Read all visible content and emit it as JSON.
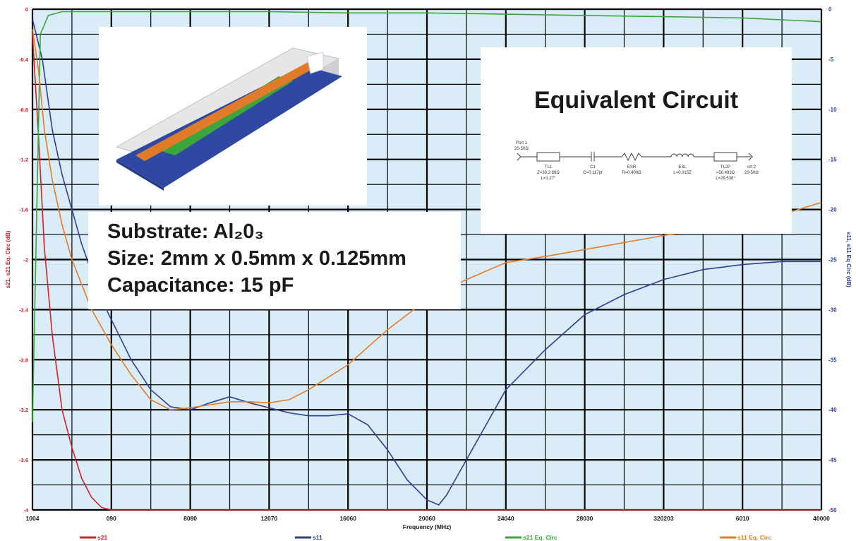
{
  "chart_data": {
    "type": "line",
    "xlabel": "Frequency (MHz)",
    "ylabel_left": "s21, s21 Eq. Circ (dB)",
    "ylabel_right": "s11, s11 Eq Circ (dB)",
    "x_tick_labels": [
      "1004",
      "090",
      "8080",
      "12070",
      "16060",
      "20060",
      "24040",
      "28030",
      "320203",
      "6010",
      "40000"
    ],
    "x_range": [
      0,
      40000
    ],
    "y_left_ticks": [
      "0",
      "-0.4",
      "-0.8",
      "-1.2",
      "-1.6",
      "-2",
      "-2.4",
      "-2.8",
      "-3.2",
      "-3.6",
      "-4"
    ],
    "y_left_range": [
      -4,
      0
    ],
    "y_right_ticks": [
      "0",
      "-5",
      "-10",
      "-15",
      "-20",
      "-25",
      "-30",
      "-35",
      "-40",
      "-45",
      "-50"
    ],
    "y_right_range": [
      -50,
      0
    ],
    "grid": true,
    "legend_position": "bottom",
    "series": [
      {
        "name": "s21",
        "axis": "left",
        "color": "#d42027",
        "points": [
          [
            0,
            -0.2
          ],
          [
            300,
            -1.0
          ],
          [
            600,
            -1.9
          ],
          [
            1000,
            -2.6
          ],
          [
            1500,
            -3.2
          ],
          [
            2000,
            -3.5
          ],
          [
            2500,
            -3.75
          ],
          [
            3000,
            -3.9
          ],
          [
            3500,
            -3.98
          ],
          [
            4000,
            -4.0
          ],
          [
            8000,
            -4.0
          ],
          [
            12000,
            -4.0
          ],
          [
            16000,
            -4.0
          ],
          [
            20000,
            -4.0
          ],
          [
            24000,
            -4.0
          ],
          [
            28000,
            -4.0
          ],
          [
            32000,
            -4.0
          ],
          [
            36000,
            -4.0
          ],
          [
            40000,
            -4.0
          ]
        ]
      },
      {
        "name": "s11",
        "axis": "right",
        "color": "#2e3f96",
        "points": [
          [
            0,
            -1.0
          ],
          [
            500,
            -5.0
          ],
          [
            1000,
            -12.0
          ],
          [
            1500,
            -16.5
          ],
          [
            2500,
            -23.5
          ],
          [
            3500,
            -29.0
          ],
          [
            5000,
            -35.0
          ],
          [
            6000,
            -38.0
          ],
          [
            7000,
            -39.7
          ],
          [
            8000,
            -40.0
          ],
          [
            9000,
            -39.3
          ],
          [
            10000,
            -38.7
          ],
          [
            11000,
            -39.3
          ],
          [
            12000,
            -39.8
          ],
          [
            13000,
            -40.3
          ],
          [
            14000,
            -40.6
          ],
          [
            15000,
            -40.6
          ],
          [
            16000,
            -40.4
          ],
          [
            17000,
            -41.5
          ],
          [
            18000,
            -44.0
          ],
          [
            19000,
            -47.0
          ],
          [
            20000,
            -49.0
          ],
          [
            20600,
            -49.5
          ],
          [
            21000,
            -48.5
          ],
          [
            22000,
            -45.0
          ],
          [
            23000,
            -41.5
          ],
          [
            24000,
            -38.0
          ],
          [
            26000,
            -34.0
          ],
          [
            28000,
            -30.5
          ],
          [
            30000,
            -28.5
          ],
          [
            32000,
            -27.0
          ],
          [
            34000,
            -26.0
          ],
          [
            36000,
            -25.5
          ],
          [
            38000,
            -25.2
          ],
          [
            40000,
            -25.2
          ]
        ]
      },
      {
        "name": "s21 Eq. Circ",
        "axis": "left",
        "color": "#3aa63b",
        "points": [
          [
            0,
            -3.3
          ],
          [
            400,
            -0.2
          ],
          [
            800,
            -0.05
          ],
          [
            1500,
            -0.02
          ],
          [
            8000,
            -0.02
          ],
          [
            12000,
            -0.02
          ],
          [
            16000,
            -0.03
          ],
          [
            20000,
            -0.03
          ],
          [
            24000,
            -0.04
          ],
          [
            28000,
            -0.05
          ],
          [
            32000,
            -0.06
          ],
          [
            36000,
            -0.07
          ],
          [
            40000,
            -0.1
          ]
        ]
      },
      {
        "name": "s11 Eq. Circ",
        "axis": "right",
        "color": "#e67c26",
        "points": [
          [
            0,
            -2.0
          ],
          [
            300,
            -6.0
          ],
          [
            600,
            -12.0
          ],
          [
            1000,
            -17.0
          ],
          [
            1500,
            -21.5
          ],
          [
            2000,
            -25.0
          ],
          [
            3000,
            -30.0
          ],
          [
            4000,
            -33.5
          ],
          [
            5000,
            -36.5
          ],
          [
            6000,
            -39.0
          ],
          [
            7000,
            -40.0
          ],
          [
            8000,
            -39.8
          ],
          [
            9000,
            -39.5
          ],
          [
            10000,
            -39.2
          ],
          [
            11000,
            -39.2
          ],
          [
            12000,
            -39.3
          ],
          [
            13000,
            -39.0
          ],
          [
            14000,
            -38.0
          ],
          [
            16000,
            -35.5
          ],
          [
            18000,
            -32.0
          ],
          [
            20000,
            -29.0
          ],
          [
            22000,
            -27.0
          ],
          [
            24000,
            -25.3
          ],
          [
            26000,
            -24.7
          ],
          [
            28000,
            -24.0
          ],
          [
            30000,
            -23.3
          ],
          [
            32000,
            -22.6
          ],
          [
            34000,
            -22.0
          ],
          [
            36000,
            -21.2
          ],
          [
            38000,
            -20.5
          ],
          [
            40000,
            -19.3
          ]
        ]
      }
    ]
  },
  "info": {
    "substrate_label": "Substrate: Al₂0₃",
    "size_label": "Size: 2mm x 0.5mm x 0.125mm",
    "cap_label": "Capacitance: 15 pF"
  },
  "circuit": {
    "title": "Equivalent Circuit",
    "port1": [
      "Port 1",
      "20-50Ω"
    ],
    "port2": [
      "ort 2",
      "20-50Ω"
    ],
    "components": [
      {
        "name": "TL1",
        "lines": [
          "TL1",
          "Z=39.3 89Ω",
          "L=1.27°"
        ]
      },
      {
        "name": "C1",
        "lines": [
          "C1",
          "C=0.117pf"
        ]
      },
      {
        "name": "ESR",
        "lines": [
          "ESR",
          "R=0.400Ω"
        ]
      },
      {
        "name": "ESL",
        "lines": [
          "ESL",
          "L=0.015Z"
        ]
      },
      {
        "name": "TL2P",
        "lines": [
          "TL2P",
          "=50.493Ω",
          "L=29.538°"
        ]
      }
    ]
  },
  "colors": {
    "plot_bg": "#d9ecf8",
    "grid": "#000000",
    "tick_text": "#c62027",
    "right_tick_text": "#2e3f96",
    "model_orange": "#e07b29",
    "model_green": "#3aa63b",
    "model_blue": "#2f48a1",
    "model_gray": "#cfcfd3"
  }
}
